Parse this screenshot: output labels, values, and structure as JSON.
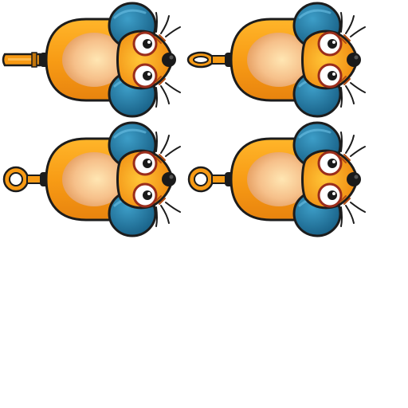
{
  "sprite_sheet": {
    "sprites": [
      {
        "variant": "tail-straight"
      },
      {
        "variant": "tail-ring-half"
      },
      {
        "variant": "tail-ring"
      },
      {
        "variant": "tail-ring"
      }
    ]
  },
  "palette": {
    "outline": "#1c1c1c",
    "body_orange": "#f79a14",
    "body_light": "#ffc233",
    "belly_light": "#ffe0a8",
    "belly_dark": "#e8a063",
    "ear_blue": "#1e6f98",
    "ear_light": "#3c9bc4",
    "eye_white": "#ffffff",
    "eye_ring": "#9b2d1b",
    "nose": "#1a1a1a",
    "background": "#ffffff"
  }
}
